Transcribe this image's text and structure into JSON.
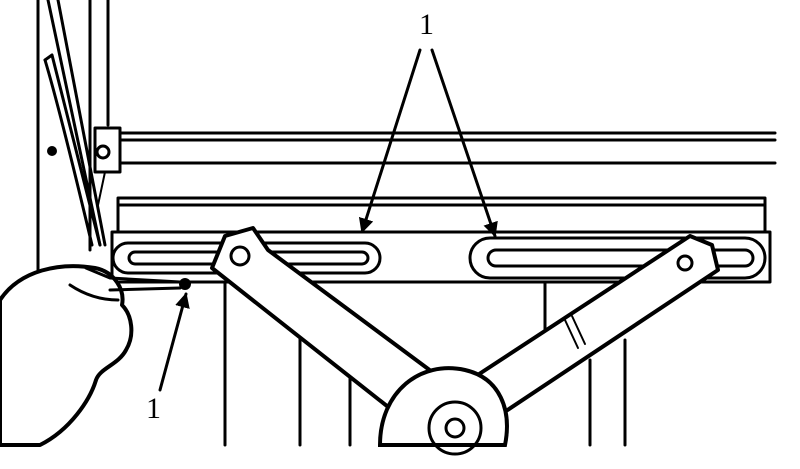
{
  "figure": {
    "callouts": [
      {
        "id": "top",
        "text": "1"
      },
      {
        "id": "bottom",
        "text": "1"
      }
    ]
  }
}
